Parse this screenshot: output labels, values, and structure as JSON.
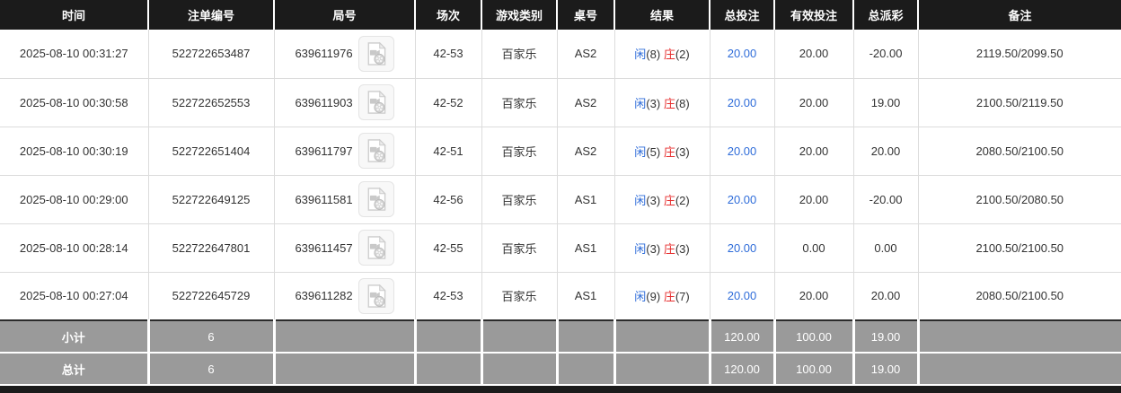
{
  "colors": {
    "header_bg": "#1b1b1b",
    "header_text": "#ffffff",
    "summary_bg": "#9a9a9a",
    "summary_text": "#ffffff",
    "link_blue": "#2e6cd9",
    "negative_red": "#e62e2e",
    "player_blue": "#2e6cd9",
    "banker_red": "#e62e2e",
    "body_text": "#333333",
    "grid_line": "#dcdcdc"
  },
  "icons": {
    "round_video_icon": "video-file-icon"
  },
  "table": {
    "columns": [
      {
        "key": "time",
        "label": "时间"
      },
      {
        "key": "bet-id",
        "label": "注单编号"
      },
      {
        "key": "round-id",
        "label": "局号"
      },
      {
        "key": "session",
        "label": "场次"
      },
      {
        "key": "game-type",
        "label": "游戏类别"
      },
      {
        "key": "table-no",
        "label": "桌号"
      },
      {
        "key": "result",
        "label": "结果"
      },
      {
        "key": "total-bet",
        "label": "总投注"
      },
      {
        "key": "valid-bet",
        "label": "有效投注"
      },
      {
        "key": "total-payout",
        "label": "总派彩"
      },
      {
        "key": "remark",
        "label": "备注"
      }
    ],
    "rows": [
      {
        "time": "2025-08-10 00:31:27",
        "bet_id": "522722653487",
        "round_id": "639611976",
        "session": "42-53",
        "game_type": "百家乐",
        "table_no": "AS2",
        "result": {
          "player_label": "闲",
          "player_count": "(8)",
          "banker_label": "庄",
          "banker_count": "(2)"
        },
        "total_bet": "20.00",
        "valid_bet": "20.00",
        "total_payout": "-20.00",
        "remark": "2119.50/2099.50"
      },
      {
        "time": "2025-08-10 00:30:58",
        "bet_id": "522722652553",
        "round_id": "639611903",
        "session": "42-52",
        "game_type": "百家乐",
        "table_no": "AS2",
        "result": {
          "player_label": "闲",
          "player_count": "(3)",
          "banker_label": "庄",
          "banker_count": "(8)"
        },
        "total_bet": "20.00",
        "valid_bet": "20.00",
        "total_payout": "19.00",
        "remark": "2100.50/2119.50"
      },
      {
        "time": "2025-08-10 00:30:19",
        "bet_id": "522722651404",
        "round_id": "639611797",
        "session": "42-51",
        "game_type": "百家乐",
        "table_no": "AS2",
        "result": {
          "player_label": "闲",
          "player_count": "(5)",
          "banker_label": "庄",
          "banker_count": "(3)"
        },
        "total_bet": "20.00",
        "valid_bet": "20.00",
        "total_payout": "20.00",
        "remark": "2080.50/2100.50"
      },
      {
        "time": "2025-08-10 00:29:00",
        "bet_id": "522722649125",
        "round_id": "639611581",
        "session": "42-56",
        "game_type": "百家乐",
        "table_no": "AS1",
        "result": {
          "player_label": "闲",
          "player_count": "(3)",
          "banker_label": "庄",
          "banker_count": "(2)"
        },
        "total_bet": "20.00",
        "valid_bet": "20.00",
        "total_payout": "-20.00",
        "remark": "2100.50/2080.50"
      },
      {
        "time": "2025-08-10 00:28:14",
        "bet_id": "522722647801",
        "round_id": "639611457",
        "session": "42-55",
        "game_type": "百家乐",
        "table_no": "AS1",
        "result": {
          "player_label": "闲",
          "player_count": "(3)",
          "banker_label": "庄",
          "banker_count": "(3)"
        },
        "total_bet": "20.00",
        "valid_bet": "0.00",
        "total_payout": "0.00",
        "remark": "2100.50/2100.50"
      },
      {
        "time": "2025-08-10 00:27:04",
        "bet_id": "522722645729",
        "round_id": "639611282",
        "session": "42-53",
        "game_type": "百家乐",
        "table_no": "AS1",
        "result": {
          "player_label": "闲",
          "player_count": "(9)",
          "banker_label": "庄",
          "banker_count": "(7)"
        },
        "total_bet": "20.00",
        "valid_bet": "20.00",
        "total_payout": "20.00",
        "remark": "2080.50/2100.50"
      }
    ],
    "summary_rows": [
      {
        "label": "小计",
        "count": "6",
        "total_bet": "120.00",
        "valid_bet": "100.00",
        "total_payout": "19.00"
      },
      {
        "label": "总计",
        "count": "6",
        "total_bet": "120.00",
        "valid_bet": "100.00",
        "total_payout": "19.00"
      }
    ]
  }
}
